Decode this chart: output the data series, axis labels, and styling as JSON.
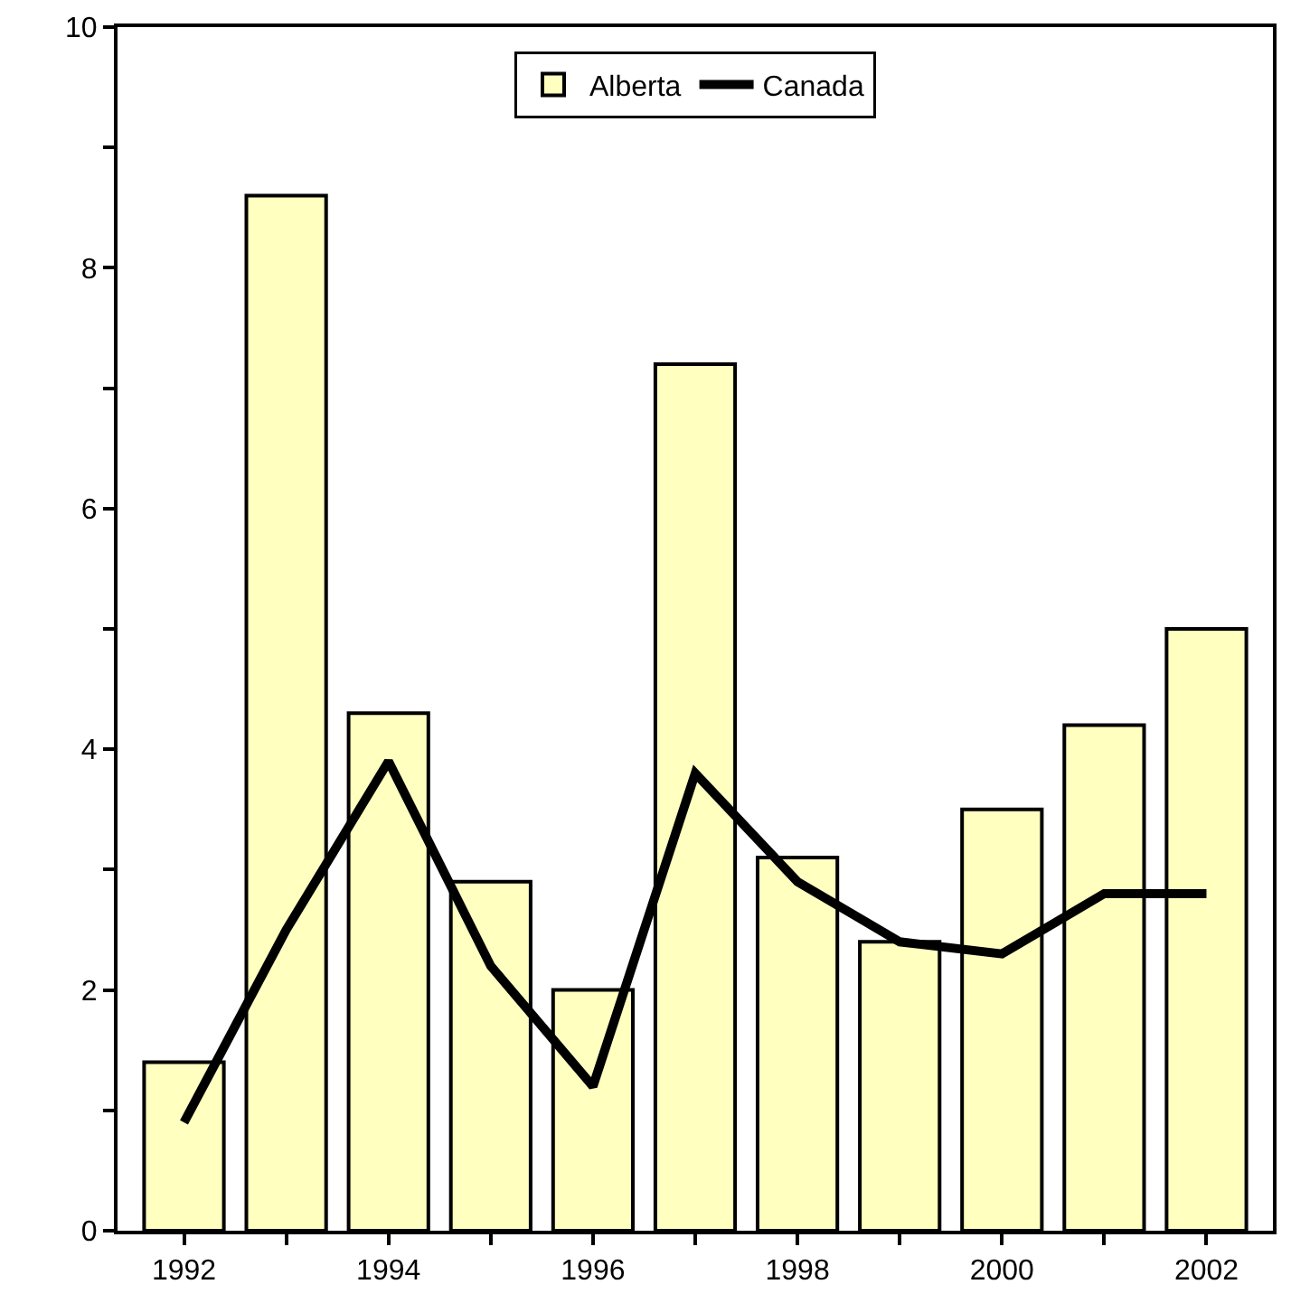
{
  "chart_data": {
    "type": "bar",
    "categories": [
      "1992",
      null,
      "1994",
      null,
      "1996",
      null,
      "1998",
      null,
      "2000",
      null,
      "2002"
    ],
    "series": [
      {
        "name": "Alberta",
        "color": "#ffffc0",
        "values": [
          1.4,
          8.6,
          4.3,
          2.9,
          2.0,
          7.2,
          3.1,
          2.4,
          3.5,
          4.2,
          5.0
        ]
      },
      {
        "name": "Canada",
        "type": "line",
        "color": "#000000",
        "values": [
          0.9,
          2.5,
          3.9,
          2.2,
          1.2,
          3.8,
          2.9,
          2.4,
          2.3,
          2.8,
          2.8
        ]
      }
    ],
    "ylim": [
      0,
      10
    ],
    "yticks": [
      0,
      {
        "value": 1,
        "label": null
      },
      2,
      {
        "value": 3,
        "label": null
      },
      4,
      {
        "value": 5,
        "label": null
      },
      6,
      {
        "value": 7,
        "label": null
      },
      8,
      {
        "value": 9,
        "label": null
      },
      10
    ],
    "legend": "top",
    "marker": "none",
    "line_style": "solid"
  }
}
